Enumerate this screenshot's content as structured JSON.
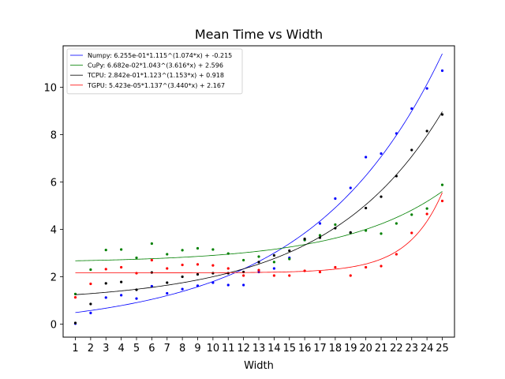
{
  "chart_data": {
    "type": "scatter",
    "title": "Mean Time vs Width",
    "xlabel": "Width",
    "ylabel": "",
    "xlim": [
      0.2,
      25.8
    ],
    "ylim": [
      -0.55,
      11.75
    ],
    "x_ticks": [
      1,
      2,
      3,
      4,
      5,
      6,
      7,
      8,
      9,
      10,
      11,
      12,
      13,
      14,
      15,
      16,
      17,
      18,
      19,
      20,
      21,
      22,
      23,
      24,
      25
    ],
    "y_ticks": [
      0,
      2,
      4,
      6,
      8,
      10
    ],
    "x_tick_labels": [
      "1",
      "2",
      "3",
      "4",
      "5",
      "6",
      "7",
      "8",
      "9",
      "10",
      "11",
      "12",
      "13",
      "14",
      "15",
      "16",
      "17",
      "18",
      "19",
      "20",
      "21",
      "22",
      "23",
      "24",
      "25"
    ],
    "y_tick_labels": [
      "0",
      "2",
      "4",
      "6",
      "8",
      "10"
    ],
    "grid": false,
    "legend_position": "top-left",
    "x": [
      1,
      2,
      3,
      4,
      5,
      6,
      7,
      8,
      9,
      10,
      11,
      12,
      13,
      14,
      15,
      16,
      17,
      18,
      19,
      20,
      21,
      22,
      23,
      24,
      25
    ],
    "series": [
      {
        "name": "Numpy: 6.255e-01*1.115^(1.074*x) + -0.215",
        "color": "#0000ff",
        "points": [
          0.02,
          0.47,
          1.12,
          1.22,
          1.08,
          1.6,
          1.3,
          1.48,
          1.62,
          1.75,
          1.65,
          1.65,
          2.2,
          2.35,
          2.8,
          3.55,
          4.25,
          5.3,
          5.75,
          7.05,
          7.2,
          8.05,
          9.1,
          9.95,
          10.7
        ],
        "fit": {
          "a": 0.6255,
          "b": 1.115,
          "c": 1.074,
          "d": -0.215
        }
      },
      {
        "name": "CuPy: 6.682e-02*1.043^(3.616*x) + 2.596",
        "color": "#008000",
        "points": [
          1.27,
          2.3,
          3.13,
          3.15,
          2.8,
          3.4,
          2.95,
          3.12,
          3.2,
          3.15,
          2.98,
          2.7,
          2.85,
          2.62,
          2.75,
          3.55,
          3.75,
          4.2,
          3.85,
          3.95,
          3.82,
          4.25,
          4.62,
          4.88,
          5.88
        ],
        "fit": {
          "a": 0.06682,
          "b": 1.043,
          "c": 3.616,
          "d": 2.596
        }
      },
      {
        "name": "TCPU: 2.842e-01*1.123^(1.153*x) + 0.918",
        "color": "#000000",
        "points": [
          0.05,
          0.85,
          1.72,
          1.78,
          1.45,
          2.18,
          1.75,
          2.0,
          2.1,
          2.15,
          2.15,
          2.2,
          2.62,
          2.9,
          3.1,
          3.6,
          3.65,
          4.05,
          3.87,
          4.9,
          5.38,
          6.25,
          7.35,
          8.15,
          8.85
        ],
        "fit": {
          "a": 0.2842,
          "b": 1.123,
          "c": 1.153,
          "d": 0.918
        }
      },
      {
        "name": "TGPU: 5.423e-05*1.137^(3.440*x) + 2.167",
        "color": "#ff0000",
        "points": [
          1.13,
          1.7,
          2.32,
          2.4,
          2.15,
          2.7,
          2.35,
          2.5,
          2.52,
          2.48,
          2.35,
          2.05,
          2.28,
          2.05,
          2.05,
          2.25,
          2.2,
          2.4,
          2.05,
          2.4,
          2.45,
          2.95,
          3.85,
          4.65,
          5.2
        ],
        "fit": {
          "a": 5.423e-05,
          "b": 1.137,
          "c": 3.44,
          "d": 2.167
        }
      }
    ]
  }
}
